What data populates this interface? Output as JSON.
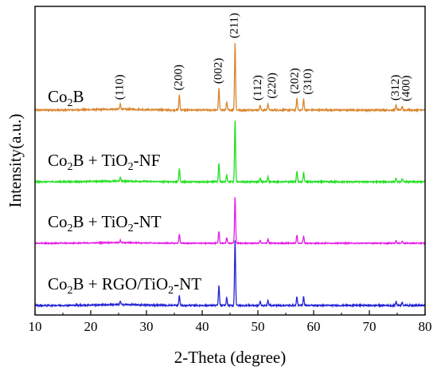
{
  "chart_data": {
    "type": "line",
    "xlabel": "2-Theta (degree)",
    "ylabel": "Intensity(a.u.)",
    "xlim": [
      10,
      80
    ],
    "x_ticks": [
      10,
      20,
      30,
      40,
      50,
      60,
      70,
      80
    ],
    "y_ticks_shown": false,
    "grid": false,
    "legend": "none",
    "series": [
      {
        "name": "Co2B",
        "label_parts": [
          {
            "t": "Co"
          },
          {
            "t": "2",
            "sub": true
          },
          {
            "t": "B"
          }
        ],
        "color": "#d9862e",
        "peaks": [
          [
            25.3,
            0.08
          ],
          [
            35.9,
            0.22
          ],
          [
            43.0,
            0.32
          ],
          [
            44.4,
            0.12
          ],
          [
            45.9,
            1.0
          ],
          [
            50.4,
            0.07
          ],
          [
            51.8,
            0.1
          ],
          [
            57.0,
            0.17
          ],
          [
            58.2,
            0.16
          ],
          [
            74.8,
            0.07
          ],
          [
            75.9,
            0.06
          ]
        ]
      },
      {
        "name": "Co2B + TiO2-NF",
        "label_parts": [
          {
            "t": "Co"
          },
          {
            "t": "2",
            "sub": true
          },
          {
            "t": "B + TiO"
          },
          {
            "t": "2",
            "sub": true
          },
          {
            "t": "-NF"
          }
        ],
        "color": "#22e022",
        "peaks": [
          [
            25.3,
            0.06
          ],
          [
            35.9,
            0.22
          ],
          [
            43.0,
            0.3
          ],
          [
            44.4,
            0.12
          ],
          [
            45.9,
            1.0
          ],
          [
            50.4,
            0.06
          ],
          [
            51.8,
            0.09
          ],
          [
            57.0,
            0.17
          ],
          [
            58.2,
            0.16
          ],
          [
            74.8,
            0.06
          ],
          [
            75.9,
            0.05
          ]
        ]
      },
      {
        "name": "Co2B + TiO2-NT",
        "label_parts": [
          {
            "t": "Co"
          },
          {
            "t": "2",
            "sub": true
          },
          {
            "t": "B + TiO"
          },
          {
            "t": "2",
            "sub": true
          },
          {
            "t": "-NT"
          }
        ],
        "color": "#e61ee6",
        "peaks": [
          [
            25.3,
            0.06
          ],
          [
            35.9,
            0.2
          ],
          [
            43.0,
            0.26
          ],
          [
            44.4,
            0.12
          ],
          [
            45.9,
            1.0
          ],
          [
            50.4,
            0.06
          ],
          [
            51.8,
            0.09
          ],
          [
            57.0,
            0.17
          ],
          [
            58.2,
            0.16
          ],
          [
            74.8,
            0.06
          ],
          [
            75.9,
            0.05
          ]
        ]
      },
      {
        "name": "Co2B + RGO/TiO2-NT",
        "label_parts": [
          {
            "t": "Co"
          },
          {
            "t": "2",
            "sub": true
          },
          {
            "t": "B + RGO/TiO"
          },
          {
            "t": "2",
            "sub": true
          },
          {
            "t": "-NT"
          }
        ],
        "color": "#2424d6",
        "peaks": [
          [
            25.3,
            0.05
          ],
          [
            35.9,
            0.15
          ],
          [
            43.0,
            0.3
          ],
          [
            44.4,
            0.12
          ],
          [
            45.9,
            1.0
          ],
          [
            50.4,
            0.06
          ],
          [
            51.8,
            0.08
          ],
          [
            57.0,
            0.13
          ],
          [
            58.2,
            0.14
          ],
          [
            74.8,
            0.06
          ],
          [
            75.9,
            0.05
          ]
        ]
      }
    ],
    "peak_labels": [
      {
        "text": "(110)",
        "x": 25.3
      },
      {
        "text": "(200)",
        "x": 35.9
      },
      {
        "text": "(002)",
        "x": 43.0
      },
      {
        "text": "(211)",
        "x": 45.9
      },
      {
        "text": "(112)",
        "x": 50.4
      },
      {
        "text": "(220)",
        "x": 51.8
      },
      {
        "text": "(202)",
        "x": 57.0
      },
      {
        "text": "(310)",
        "x": 58.2
      },
      {
        "text": "(312)",
        "x": 74.8
      },
      {
        "text": "(400)",
        "x": 75.9
      }
    ]
  }
}
